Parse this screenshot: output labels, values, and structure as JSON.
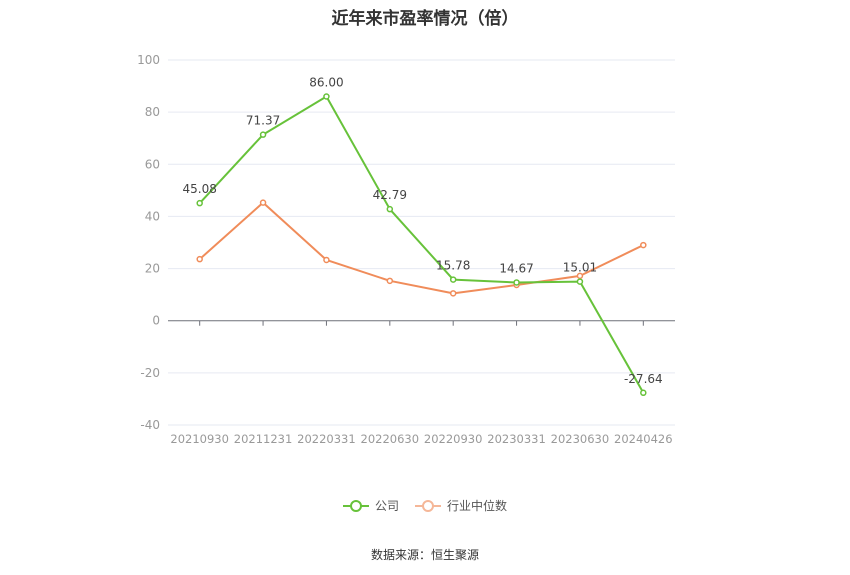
{
  "title": "近年来市盈率情况（倍）",
  "source": "数据来源：恒生聚源",
  "colors": {
    "company": "#67c23a",
    "industry": "#f08c5a"
  },
  "chart_data": {
    "type": "line",
    "categories": [
      "20210930",
      "20211231",
      "20220331",
      "20220630",
      "20220930",
      "20230331",
      "20230630",
      "20240426"
    ],
    "series": [
      {
        "name": "公司",
        "values": [
          45.08,
          71.37,
          86.0,
          42.79,
          15.78,
          14.67,
          15.01,
          -27.64
        ],
        "labels": [
          "45.08",
          "71.37",
          "86.00",
          "42.79",
          "15.78",
          "14.67",
          "15.01",
          "-27.64"
        ]
      },
      {
        "name": "行业中位数",
        "values": [
          23.6,
          45.3,
          23.3,
          15.3,
          10.5,
          13.7,
          17.2,
          29.0
        ]
      }
    ],
    "ylim": [
      -40,
      100
    ],
    "yticks": [
      -40,
      -20,
      0,
      20,
      40,
      60,
      80,
      100
    ],
    "grid": true,
    "legend": "bottom-center"
  }
}
